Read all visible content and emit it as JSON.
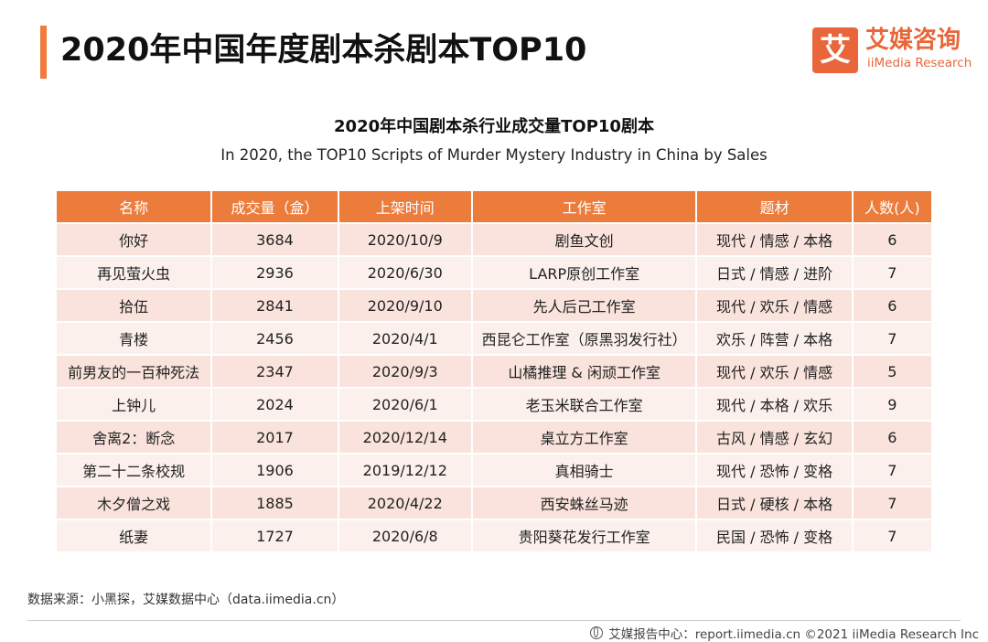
{
  "header": {
    "title": "2020年中国年度剧本杀剧本TOP10",
    "logo_mark": "艾",
    "logo_cn": "艾媒咨询",
    "logo_en": "iiMedia Research",
    "accent_color": "#f07b3a"
  },
  "subtitle": {
    "cn": "2020年中国剧本杀行业成交量TOP10剧本",
    "en": "In 2020, the TOP10 Scripts of Murder Mystery Industry in China by Sales"
  },
  "table": {
    "header_color": "#ec7c3c",
    "columns": [
      "名称",
      "成交量（盒）",
      "上架时间",
      "工作室",
      "题材",
      "人数(人)"
    ],
    "rows": [
      [
        "你好",
        "3684",
        "2020/10/9",
        "剧鱼文创",
        "现代 / 情感 / 本格",
        "6"
      ],
      [
        "再见萤火虫",
        "2936",
        "2020/6/30",
        "LARP原创工作室",
        "日式 / 情感 / 进阶",
        "7"
      ],
      [
        "拾伍",
        "2841",
        "2020/9/10",
        "先人后己工作室",
        "现代 / 欢乐 / 情感",
        "6"
      ],
      [
        "青楼",
        "2456",
        "2020/4/1",
        "西昆仑工作室（原黑羽发行社）",
        "欢乐 / 阵营 / 本格",
        "7"
      ],
      [
        "前男友的一百种死法",
        "2347",
        "2020/9/3",
        "山橘推理 & 闲顽工作室",
        "现代 / 欢乐 / 情感",
        "5"
      ],
      [
        "上钟儿",
        "2024",
        "2020/6/1",
        "老玉米联合工作室",
        "现代 / 本格 / 欢乐",
        "9"
      ],
      [
        "舍离2：断念",
        "2017",
        "2020/12/14",
        "桌立方工作室",
        "古风 / 情感 / 玄幻",
        "6"
      ],
      [
        "第二十二条校规",
        "1906",
        "2019/12/12",
        "真相骑士",
        "现代 / 恐怖 / 变格",
        "7"
      ],
      [
        "木夕僧之戏",
        "1885",
        "2020/4/22",
        "西安蛛丝马迹",
        "日式 / 硬核 / 本格",
        "7"
      ],
      [
        "纸妻",
        "1727",
        "2020/6/8",
        "贵阳葵花发行工作室",
        "民国 / 恐怖 / 变格",
        "7"
      ]
    ]
  },
  "source": "数据来源：小黑探，艾媒数据中心（data.iimedia.cn）",
  "footer": "艾媒报告中心：report.iimedia.cn  ©2021  iiMedia Research  Inc"
}
